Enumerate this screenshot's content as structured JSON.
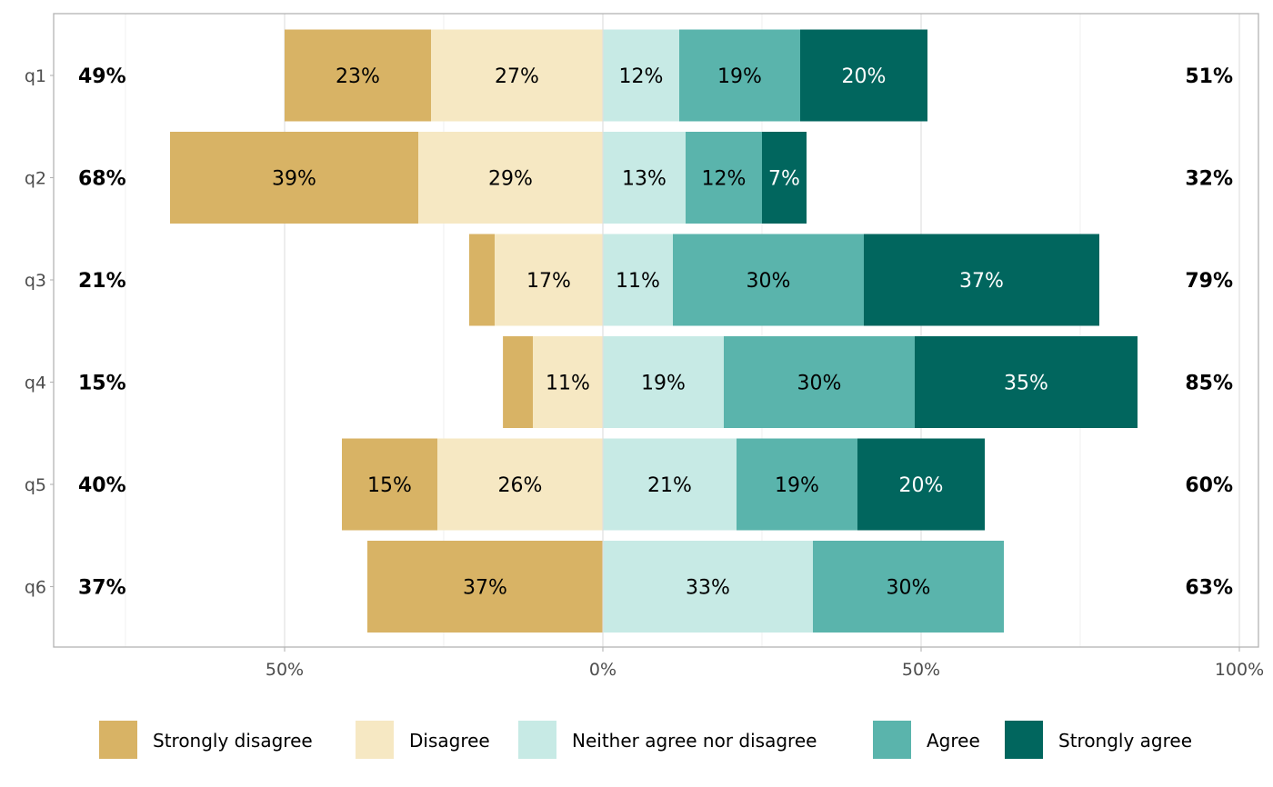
{
  "chart_data": {
    "type": "bar",
    "orientation": "horizontal-diverging-stacked",
    "title": "",
    "xlabel": "",
    "ylabel": "",
    "xlim": [
      -87,
      103
    ],
    "x_ticks": [
      {
        "value": -50,
        "label": "50%"
      },
      {
        "value": 0,
        "label": "0%"
      },
      {
        "value": 50,
        "label": "50%"
      },
      {
        "value": 100,
        "label": "100%"
      }
    ],
    "grid": true,
    "legend_position": "bottom",
    "categories": [
      "q1",
      "q2",
      "q3",
      "q4",
      "q5",
      "q6"
    ],
    "series": [
      {
        "name": "Strongly disagree",
        "side": "negative",
        "color": "#D8B365",
        "label_color": "#000000",
        "values": [
          23,
          39,
          4,
          4.7,
          15,
          37
        ],
        "labels": [
          "23%",
          "39%",
          "",
          "",
          "15%",
          "37%"
        ]
      },
      {
        "name": "Disagree",
        "side": "negative",
        "color": "#F6E8C3",
        "label_color": "#000000",
        "values": [
          27,
          29,
          17,
          11,
          26,
          0
        ],
        "labels": [
          "27%",
          "29%",
          "17%",
          "11%",
          "26%",
          ""
        ]
      },
      {
        "name": "Neither agree nor disagree",
        "side": "positive",
        "color": "#C7EAE5",
        "label_color": "#000000",
        "values": [
          12,
          13,
          11,
          19,
          21,
          33
        ],
        "labels": [
          "12%",
          "13%",
          "11%",
          "19%",
          "21%",
          "33%"
        ]
      },
      {
        "name": "Agree",
        "side": "positive",
        "color": "#5AB4AC",
        "label_color": "#000000",
        "values": [
          19,
          12,
          30,
          30,
          19,
          30
        ],
        "labels": [
          "19%",
          "12%",
          "30%",
          "30%",
          "19%",
          "30%"
        ]
      },
      {
        "name": "Strongly agree",
        "side": "positive",
        "color": "#01665E",
        "label_color": "#ffffff",
        "values": [
          20,
          7,
          37,
          35,
          20,
          0
        ],
        "labels": [
          "20%",
          "7%",
          "37%",
          "35%",
          "20%",
          ""
        ]
      }
    ],
    "left_totals": [
      "49%",
      "68%",
      "21%",
      "15%",
      "40%",
      "37%"
    ],
    "right_totals": [
      "51%",
      "32%",
      "79%",
      "85%",
      "60%",
      "63%"
    ]
  }
}
